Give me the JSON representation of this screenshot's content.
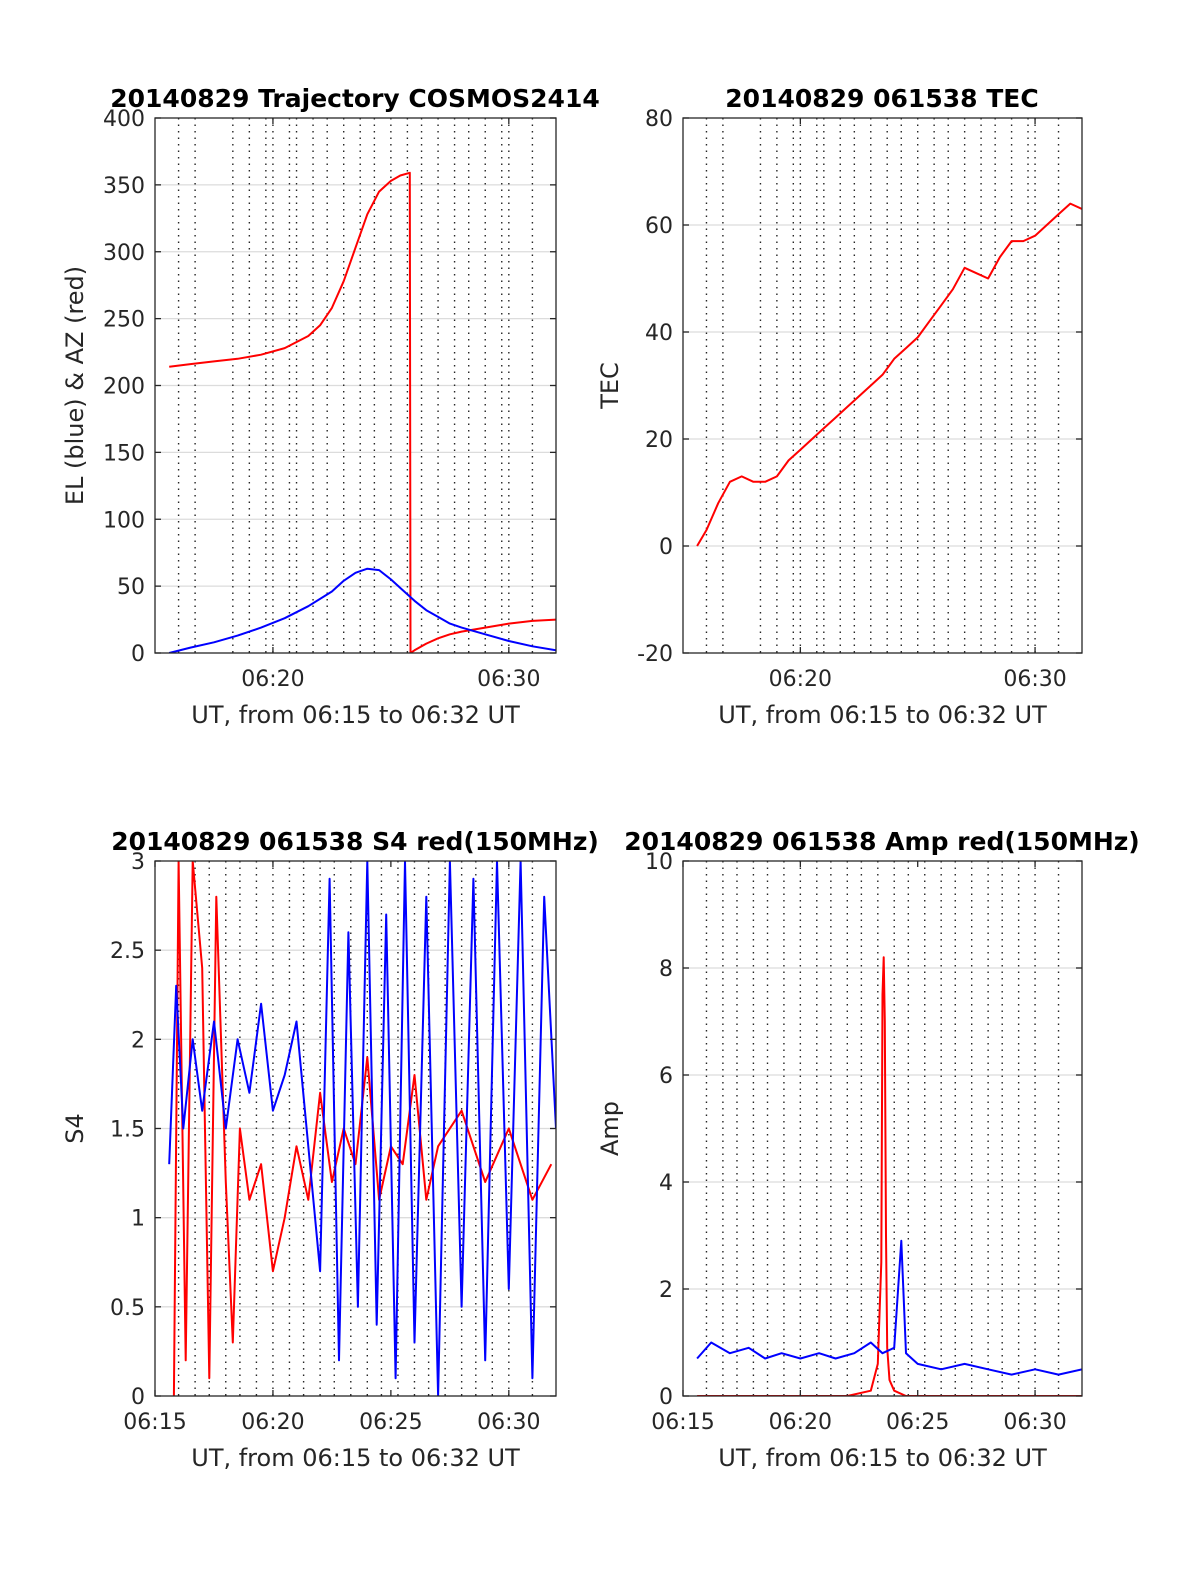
{
  "chart_data": [
    {
      "type": "line",
      "title": "20140829 Trajectory COSMOS2414",
      "xlabel": "UT, from 06:15 to 06:32 UT",
      "ylabel": "EL (blue) & AZ (red)",
      "xlim": [
        15.0,
        32.0
      ],
      "ylim": [
        0,
        400
      ],
      "x_ticks": [
        {
          "value": 20,
          "label": "06:20"
        },
        {
          "value": 30,
          "label": "06:30"
        }
      ],
      "y_ticks": [
        "0",
        "50",
        "100",
        "150",
        "200",
        "250",
        "300",
        "350",
        "400"
      ],
      "vgrid": [
        16,
        16.7,
        18.3,
        19,
        19.7,
        20,
        20.7,
        21,
        21.7,
        22.3,
        23,
        23.7,
        24.3,
        25,
        25.7,
        26.3,
        27,
        27.7,
        28.3,
        29,
        29.7,
        30,
        31
      ],
      "hgrid": true,
      "series": [
        {
          "color": "#ff0000",
          "x": [
            15.6,
            16.5,
            17.5,
            18.5,
            19.5,
            20.5,
            21.5,
            22.0,
            22.5,
            23.0,
            23.5,
            24.0,
            24.5,
            25.0,
            25.4,
            25.8,
            25.83,
            26.0,
            26.5,
            27.0,
            27.5,
            28.0,
            29.0,
            30.0,
            31.0,
            32.0
          ],
          "y": [
            214,
            216,
            218,
            220,
            223,
            228,
            237,
            245,
            258,
            278,
            303,
            328,
            345,
            353,
            357,
            359,
            0,
            2,
            7,
            11,
            14,
            16,
            19,
            22,
            24,
            25
          ]
        },
        {
          "color": "#0000ff",
          "x": [
            15.6,
            16.5,
            17.5,
            18.5,
            19.5,
            20.5,
            21.5,
            22.5,
            23.0,
            23.5,
            24.0,
            24.5,
            25.0,
            25.5,
            26.0,
            26.5,
            27.0,
            27.5,
            28.0,
            29.0,
            30.0,
            31.0,
            32.0
          ],
          "y": [
            0,
            4,
            8,
            13,
            19,
            26,
            35,
            46,
            54,
            60,
            63,
            62,
            55,
            47,
            39,
            32,
            27,
            22,
            19,
            14,
            9,
            5,
            2
          ]
        }
      ]
    },
    {
      "type": "line",
      "title": "20140829 061538 TEC",
      "xlabel": "UT, from 06:15 to 06:32 UT",
      "ylabel": "TEC",
      "xlim": [
        15.0,
        32.0
      ],
      "ylim": [
        -20,
        80
      ],
      "x_ticks": [
        {
          "value": 20,
          "label": "06:20"
        },
        {
          "value": 30,
          "label": "06:30"
        }
      ],
      "y_ticks": [
        "-20",
        "0",
        "20",
        "40",
        "60",
        "80"
      ],
      "vgrid": [
        16,
        16.7,
        18.3,
        19,
        19.7,
        20,
        20.7,
        21,
        21.7,
        22.3,
        23,
        23.7,
        24.3,
        25,
        25.7,
        26.3,
        27,
        27.7,
        28.3,
        29,
        29.7,
        30,
        31
      ],
      "hgrid": true,
      "series": [
        {
          "color": "#ff0000",
          "x": [
            15.6,
            16.0,
            16.5,
            17.0,
            17.5,
            18.0,
            18.5,
            19.0,
            19.5,
            20.0,
            20.5,
            21.0,
            21.5,
            22.0,
            22.5,
            23.0,
            23.5,
            24.0,
            24.5,
            25.0,
            25.5,
            26.0,
            26.5,
            27.0,
            27.5,
            28.0,
            28.5,
            29.0,
            29.5,
            30.0,
            30.5,
            31.0,
            31.5,
            32.0
          ],
          "y": [
            0,
            3,
            8,
            12,
            13,
            12,
            12,
            13,
            16,
            18,
            20,
            22,
            24,
            26,
            28,
            30,
            32,
            35,
            37,
            39,
            42,
            45,
            48,
            52,
            51,
            50,
            54,
            57,
            57,
            58,
            60,
            62,
            64,
            63
          ]
        }
      ]
    },
    {
      "type": "line",
      "title": "20140829 061538 S4 red(150MHz)",
      "xlabel": "UT, from 06:15 to 06:32 UT",
      "ylabel": "S4",
      "xlim": [
        15.0,
        32.0
      ],
      "ylim": [
        0,
        3
      ],
      "x_ticks": [
        {
          "value": 15,
          "label": "06:15"
        },
        {
          "value": 20,
          "label": "06:20"
        },
        {
          "value": 25,
          "label": "06:25"
        },
        {
          "value": 30,
          "label": "06:30"
        }
      ],
      "y_ticks": [
        "0",
        "0.5",
        "1",
        "1.5",
        "2",
        "2.5",
        "3"
      ],
      "vgrid": [
        16,
        16.7,
        17.3,
        18,
        18.6,
        19.3,
        20,
        20.7,
        21.3,
        22,
        22.6,
        23.3,
        24,
        24.6,
        25.3,
        26,
        26.6,
        27.3,
        28,
        28.6,
        29.3,
        30,
        31
      ],
      "hgrid": true,
      "series": [
        {
          "color": "#ff0000",
          "x": [
            15.8,
            16.0,
            16.3,
            16.6,
            17.0,
            17.3,
            17.6,
            18.0,
            18.3,
            18.6,
            19.0,
            19.5,
            20.0,
            20.5,
            21.0,
            21.5,
            22.0,
            22.5,
            23.0,
            23.5,
            24.0,
            24.5,
            25.0,
            25.5,
            26.0,
            26.5,
            27.0,
            28.0,
            29.0,
            30.0,
            31.0,
            31.8
          ],
          "y": [
            0,
            3,
            0.2,
            3,
            2.4,
            0.1,
            2.8,
            1.2,
            0.3,
            1.5,
            1.1,
            1.3,
            0.7,
            1.0,
            1.4,
            1.1,
            1.7,
            1.2,
            1.5,
            1.3,
            1.9,
            1.1,
            1.4,
            1.3,
            1.8,
            1.1,
            1.4,
            1.6,
            1.2,
            1.5,
            1.1,
            1.3
          ]
        },
        {
          "color": "#0000ff",
          "x": [
            15.6,
            15.9,
            16.2,
            16.6,
            17.0,
            17.5,
            18.0,
            18.5,
            19.0,
            19.5,
            20.0,
            20.5,
            21.0,
            21.5,
            22.0,
            22.4,
            22.8,
            23.2,
            23.6,
            24.0,
            24.4,
            24.8,
            25.2,
            25.6,
            26.0,
            26.5,
            27.0,
            27.5,
            28.0,
            28.5,
            29.0,
            29.5,
            30.0,
            30.5,
            31.0,
            31.5,
            32.0
          ],
          "y": [
            1.3,
            2.3,
            1.5,
            2.0,
            1.6,
            2.1,
            1.5,
            2.0,
            1.7,
            2.2,
            1.6,
            1.8,
            2.1,
            1.4,
            0.7,
            2.9,
            0.2,
            2.6,
            0.5,
            3.0,
            0.4,
            2.7,
            0.1,
            3.0,
            0.3,
            2.8,
            0.0,
            3.0,
            0.5,
            2.9,
            0.2,
            3.0,
            0.6,
            3.0,
            0.1,
            2.8,
            1.5
          ]
        }
      ]
    },
    {
      "type": "line",
      "title": "20140829 061538 Amp red(150MHz)",
      "xlabel": "UT, from 06:15 to 06:32 UT",
      "ylabel": "Amp",
      "xlim": [
        15.0,
        32.0
      ],
      "ylim": [
        0,
        10
      ],
      "x_ticks": [
        {
          "value": 15,
          "label": "06:15"
        },
        {
          "value": 20,
          "label": "06:20"
        },
        {
          "value": 25,
          "label": "06:25"
        },
        {
          "value": 30,
          "label": "06:30"
        }
      ],
      "y_ticks": [
        "0",
        "2",
        "4",
        "6",
        "8",
        "10"
      ],
      "vgrid": [
        16,
        16.7,
        17.3,
        18,
        18.6,
        19.3,
        20,
        20.7,
        21.3,
        22,
        22.6,
        23.3,
        24,
        24.6,
        25.3,
        26,
        26.6,
        27.3,
        28,
        28.6,
        29.3,
        30,
        31
      ],
      "hgrid": true,
      "series": [
        {
          "color": "#ff0000",
          "x": [
            15.6,
            22.0,
            23.0,
            23.3,
            23.45,
            23.5,
            23.55,
            23.6,
            23.65,
            23.7,
            23.8,
            24.0,
            24.5,
            32.0
          ],
          "y": [
            0,
            0,
            0.1,
            0.6,
            2.5,
            7.5,
            8.2,
            7.0,
            3.0,
            0.9,
            0.3,
            0.1,
            0,
            0
          ]
        },
        {
          "color": "#0000ff",
          "x": [
            15.6,
            16.2,
            17.0,
            17.8,
            18.5,
            19.2,
            20.0,
            20.8,
            21.5,
            22.3,
            23.0,
            23.5,
            24.0,
            24.3,
            24.5,
            25.0,
            26.0,
            27.0,
            28.0,
            29.0,
            30.0,
            31.0,
            32.0
          ],
          "y": [
            0.7,
            1.0,
            0.8,
            0.9,
            0.7,
            0.8,
            0.7,
            0.8,
            0.7,
            0.8,
            1.0,
            0.8,
            0.9,
            2.9,
            0.8,
            0.6,
            0.5,
            0.6,
            0.5,
            0.4,
            0.5,
            0.4,
            0.5
          ]
        }
      ]
    }
  ]
}
